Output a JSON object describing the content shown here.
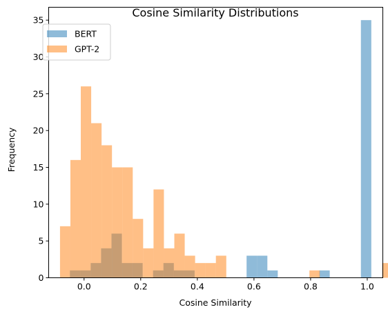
{
  "chart_data": {
    "type": "bar",
    "title": "Cosine Similarity Distributions",
    "xlabel": "Cosine Similarity",
    "ylabel": "Frequency",
    "xlim": [
      -0.125,
      1.055
    ],
    "ylim": [
      0,
      36.75
    ],
    "xticks": [
      0.0,
      0.2,
      0.4,
      0.6,
      0.8,
      1.0
    ],
    "xtick_labels": [
      "0.0",
      "0.2",
      "0.4",
      "0.6",
      "0.8",
      "1.0"
    ],
    "yticks": [
      0,
      5,
      10,
      15,
      20,
      25,
      30,
      35
    ],
    "ytick_labels": [
      "0",
      "5",
      "10",
      "15",
      "20",
      "25",
      "30",
      "35"
    ],
    "grid": false,
    "legend_position": "top-left",
    "series": [
      {
        "name": "BERT",
        "color": "#1f77b4",
        "alpha": 0.5,
        "bin_start": -0.05,
        "bin_width": 0.0367,
        "counts": [
          1,
          1,
          2,
          4,
          6,
          2,
          2,
          0,
          1,
          2,
          1,
          1,
          0,
          0,
          0,
          0,
          0,
          3,
          3,
          1,
          0,
          0,
          0,
          0,
          1,
          0,
          0,
          0,
          35
        ]
      },
      {
        "name": "GPT-2",
        "color": "#ff7f0e",
        "alpha": 0.5,
        "bin_start": -0.085,
        "bin_width": 0.0367,
        "counts": [
          7,
          16,
          26,
          21,
          18,
          15,
          15,
          8,
          4,
          12,
          4,
          6,
          3,
          2,
          2,
          3,
          0,
          0,
          0,
          0,
          0,
          0,
          0,
          0,
          1,
          0,
          0,
          0,
          0,
          0,
          0,
          2
        ]
      }
    ]
  }
}
